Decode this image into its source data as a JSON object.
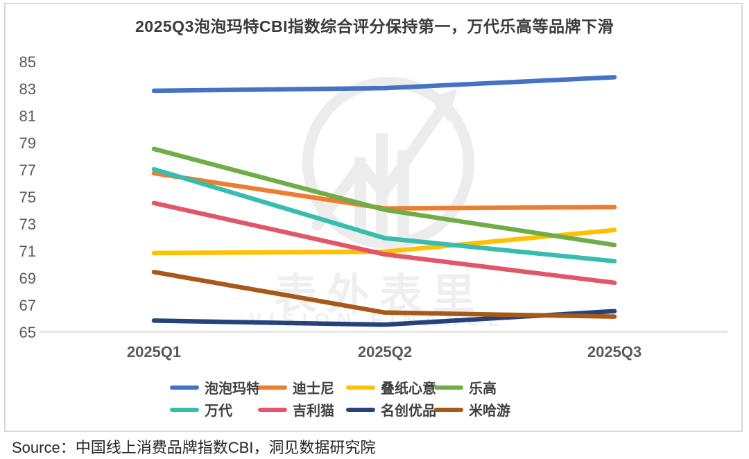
{
  "source": {
    "text": "Source：中国线上消费品牌指数CBI，洞见数据研究院"
  },
  "watermark": {
    "cn": "表外表里",
    "en": "VISION FINANCE"
  },
  "chart_data": {
    "type": "line",
    "title": "2025Q3泡泡玛特CBI指数综合评分保持第一，万代乐高等品牌下滑",
    "categories": [
      "2025Q1",
      "2025Q2",
      "2025Q3"
    ],
    "series": [
      {
        "name": "泡泡玛特",
        "slug": "popmart",
        "color": "#4472C4",
        "values": [
          82.9,
          83.1,
          83.9
        ]
      },
      {
        "name": "迪士尼",
        "slug": "disney",
        "color": "#ED7D31",
        "values": [
          76.8,
          74.2,
          74.3
        ]
      },
      {
        "name": "叠纸心意",
        "slug": "diezhixinyi",
        "color": "#FFC000",
        "values": [
          70.9,
          71.0,
          72.6
        ]
      },
      {
        "name": "乐高",
        "slug": "lego",
        "color": "#70AD47",
        "values": [
          78.6,
          74.1,
          71.5
        ]
      },
      {
        "name": "万代",
        "slug": "bandai",
        "color": "#36BDAD",
        "values": [
          77.1,
          72.0,
          70.3
        ]
      },
      {
        "name": "吉利猫",
        "slug": "jellycat",
        "color": "#E2566A",
        "values": [
          74.6,
          70.8,
          68.7
        ]
      },
      {
        "name": "名创优品",
        "slug": "miniso",
        "color": "#24437E",
        "values": [
          65.9,
          65.6,
          66.6
        ]
      },
      {
        "name": "米哈游",
        "slug": "mihoyo",
        "color": "#A85818",
        "values": [
          69.5,
          66.5,
          66.2
        ]
      }
    ],
    "xlabel": "",
    "ylabel": "",
    "ylim": [
      65,
      85
    ],
    "yticks": [
      85,
      83,
      81,
      79,
      77,
      75,
      73,
      71,
      69,
      67,
      65
    ],
    "grid": false,
    "legend_position": "bottom",
    "axis_color": "#dadada"
  }
}
